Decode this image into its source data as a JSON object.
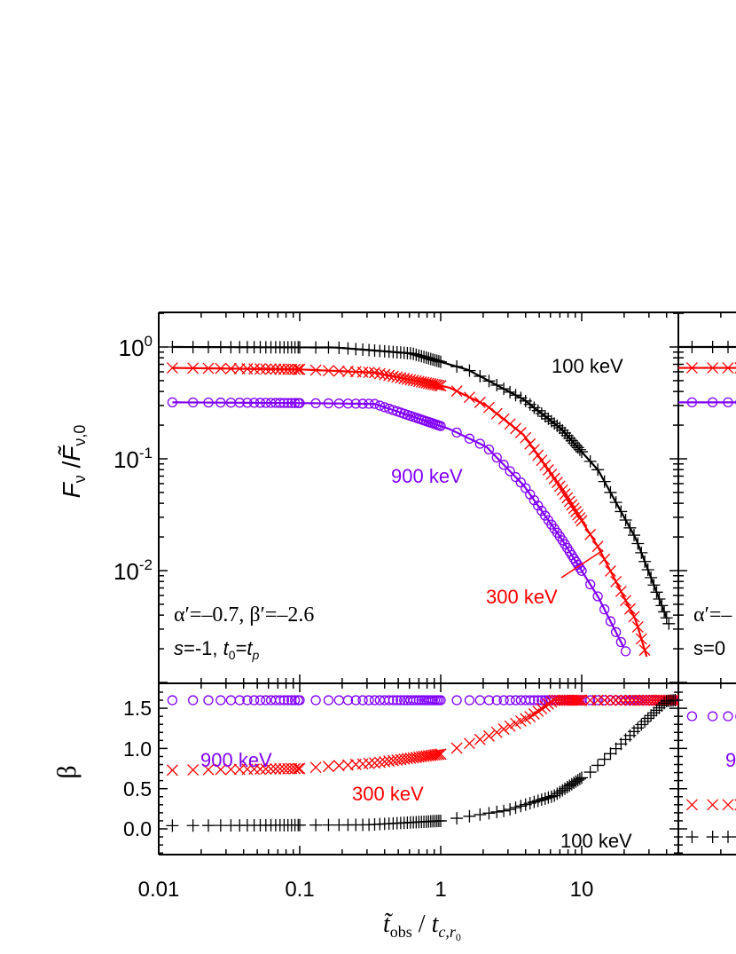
{
  "chart_data": [
    {
      "type": "line",
      "panel": "top-left",
      "x_scale": "log",
      "y_scale": "log",
      "xlim": [
        0.01,
        48
      ],
      "ylim": [
        0.001,
        2.05
      ],
      "ylabel": {
        "main": "F",
        "sub1": "ν",
        "sep": " /",
        "main2": "F̃",
        "sub2": "ν,0"
      },
      "yticks": [
        {
          "value": 1,
          "base": "10",
          "exp": "0"
        },
        {
          "value": 0.1,
          "base": "10",
          "exp": "-1"
        },
        {
          "value": 0.01,
          "base": "10",
          "exp": "-2"
        }
      ],
      "annotation": {
        "line1": "α′=–0.7, β′=–2.6",
        "line2_s": "s",
        "line2_a": "=-1, ",
        "line2_t": "t",
        "line2_t0": "0",
        "line2_eq": "=",
        "line2_tp": "t",
        "line2_p": "p"
      },
      "series": [
        {
          "name": "100 keV",
          "color": "#000000",
          "marker": "plus",
          "x": [
            0.0125,
            0.18,
            0.625,
            1.56,
            3.87,
            7.16,
            13.1,
            24.2,
            41.7
          ],
          "y": [
            1.0,
            0.99,
            0.875,
            0.625,
            0.34,
            0.185,
            0.079,
            0.0194,
            0.0033
          ]
        },
        {
          "name": "300 keV",
          "color": "#ff0000",
          "marker": "x",
          "x": [
            0.0125,
            0.1,
            0.34,
            1.15,
            2.11,
            3.87,
            7.16,
            13.1,
            24.2,
            28.9
          ],
          "y": [
            0.65,
            0.63,
            0.59,
            0.434,
            0.3,
            0.164,
            0.0546,
            0.0162,
            0.0036,
            0.0017
          ]
        },
        {
          "name": "900 keV",
          "color": "#8000ff",
          "marker": "circle",
          "x": [
            0.0125,
            0.1,
            0.34,
            1.15,
            2.11,
            3.87,
            7.16,
            13.1,
            20.5
          ],
          "y": [
            0.32,
            0.315,
            0.31,
            0.185,
            0.128,
            0.058,
            0.0194,
            0.0058,
            0.0019
          ]
        }
      ],
      "labels": {
        "s100": "100 keV",
        "s300": "300 keV",
        "s900": "900 keV"
      }
    },
    {
      "type": "scatter",
      "panel": "bottom-left",
      "x_scale": "log",
      "xlim": [
        0.01,
        48
      ],
      "ylim": [
        -0.32,
        1.81
      ],
      "ylabel": "β",
      "xlabel": {
        "t": "t̃",
        "obs": "obs",
        "sep": " / ",
        "t2": "t",
        "sub": "c,r",
        "subsub": "0"
      },
      "xticks": [
        "0.01",
        "0.1",
        "1",
        "10"
      ],
      "xtick_values": [
        0.01,
        0.1,
        1,
        10
      ],
      "yticks": [
        "0.0",
        "0.5",
        "1.0",
        "1.5"
      ],
      "ytick_values": [
        0,
        0.5,
        1.0,
        1.5
      ],
      "series": [
        {
          "name": "900 keV",
          "color": "#8000ff",
          "marker": "circle",
          "x": [
            0.0125,
            46
          ],
          "y": [
            1.6,
            1.6
          ]
        },
        {
          "name": "300 keV",
          "color": "#ff0000",
          "marker": "x",
          "x": [
            0.0125,
            0.1,
            0.345,
            1,
            2.17,
            4.35,
            6.35,
            46
          ],
          "y": [
            0.73,
            0.75,
            0.82,
            0.93,
            1.15,
            1.4,
            1.6,
            1.6
          ]
        },
        {
          "name": "100 keV",
          "color": "#000000",
          "marker": "plus",
          "x": [
            0.0125,
            0.3,
            1,
            2.94,
            6.35,
            11.6,
            18.6,
            29.3,
            40,
            46
          ],
          "y": [
            0.04,
            0.05,
            0.1,
            0.23,
            0.41,
            0.71,
            1.04,
            1.37,
            1.59,
            1.6
          ]
        }
      ],
      "labels": {
        "s100": "100 keV",
        "s300": "300 keV",
        "s900": "900 keV"
      }
    },
    {
      "type": "line",
      "panel": "right (partially visible)",
      "x_scale": "log",
      "y_scale": "log",
      "annotation": {
        "line1": "α′=–",
        "line2": "s=0"
      },
      "label_partial": "9",
      "series": [
        {
          "color": "#000000",
          "marker": "plus",
          "x": [
            0.0125,
            0.05
          ],
          "y": [
            1.0,
            1.0
          ],
          "beta": [
            -0.1,
            -0.1
          ]
        },
        {
          "color": "#ff0000",
          "marker": "x",
          "x": [
            0.0125,
            0.05
          ],
          "y": [
            0.65,
            0.65
          ],
          "beta": [
            0.3,
            0.3
          ]
        },
        {
          "color": "#8000ff",
          "marker": "circle",
          "x": [
            0.0125,
            0.05
          ],
          "y": [
            0.32,
            0.32
          ],
          "beta": [
            1.4,
            1.4
          ]
        }
      ]
    }
  ]
}
